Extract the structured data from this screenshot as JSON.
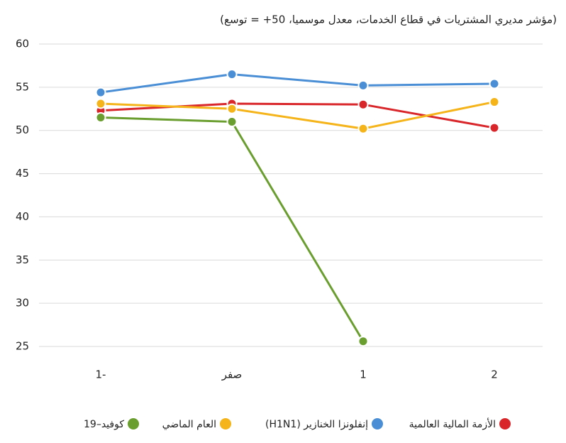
{
  "chart_data": {
    "type": "line",
    "title": "(مؤشر مديري المشتريات في قطاع الخدمات، معدل موسميا، 50+ = توسع)",
    "categories": [
      "1-",
      "صفر",
      "1",
      "2"
    ],
    "series": [
      {
        "name": "الأزمة المالية العالمية",
        "color": "#d9262b",
        "values": [
          52.3,
          53.1,
          53.0,
          50.3
        ]
      },
      {
        "name": "إنفلونزا الخنازير (H1N1)",
        "color": "#4a8fd6",
        "values": [
          54.4,
          56.5,
          55.2,
          55.4
        ]
      },
      {
        "name": "العام الماضي",
        "color": "#f4b41a",
        "values": [
          53.1,
          52.5,
          50.2,
          53.3
        ]
      },
      {
        "name": "كوفيد–19",
        "color": "#6a9e2f",
        "values": [
          51.5,
          51.0,
          25.6,
          null
        ]
      }
    ],
    "ylim": [
      25,
      60
    ],
    "yticks": [
      25,
      30,
      35,
      40,
      45,
      50,
      55,
      60
    ],
    "grid": true
  }
}
